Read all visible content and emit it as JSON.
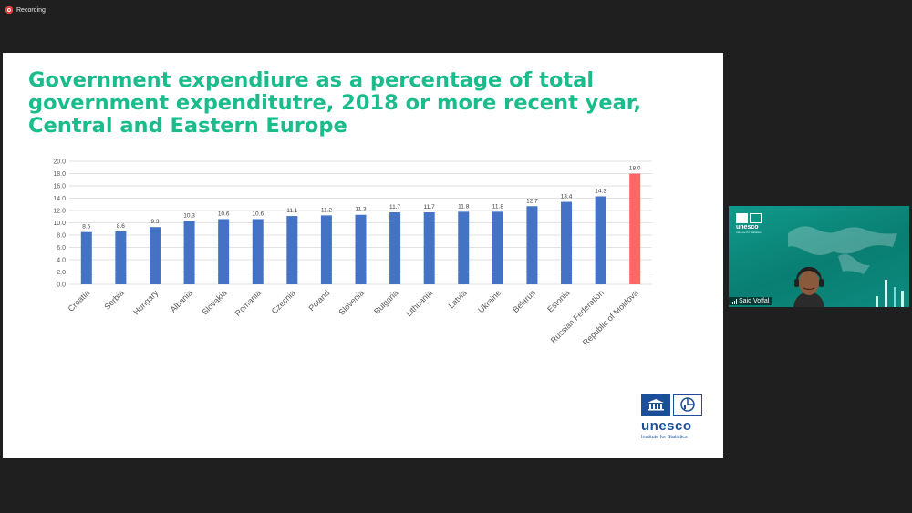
{
  "recording": {
    "label": "Recording"
  },
  "slide": {
    "title": "Government expendiure as a percentage of total government expenditutre, 2018 or more recent year, Central and Eastern Europe"
  },
  "chart_data": {
    "type": "bar",
    "categories": [
      "Croatia",
      "Serbia",
      "Hungary",
      "Albania",
      "Slovakia",
      "Romania",
      "Czechia",
      "Poland",
      "Slovenia",
      "Bulgaria",
      "Lithuania",
      "Latvia",
      "Ukraine",
      "Belarus",
      "Estonia",
      "Russian Federation",
      "Republic of Moldova"
    ],
    "values": [
      8.5,
      8.6,
      9.3,
      10.3,
      10.6,
      10.6,
      11.1,
      11.2,
      11.3,
      11.7,
      11.7,
      11.8,
      11.8,
      12.7,
      13.4,
      14.3,
      18.0
    ],
    "value_labels": [
      "8.5",
      "8.6",
      "9.3",
      "10.3",
      "10.6",
      "10.6",
      "11.1",
      "11.2",
      "11.3",
      "11.7",
      "11.7",
      "11.8",
      "11.8",
      "12.7",
      "13.4",
      "14.3",
      "18.0"
    ],
    "y_ticks": [
      "0.0",
      "2.0",
      "4.0",
      "6.0",
      "8.0",
      "10.0",
      "12.0",
      "14.0",
      "16.0",
      "18.0",
      "20.0"
    ],
    "ylim": [
      0,
      20
    ],
    "grid": true,
    "colors": {
      "bar": "#4472c4",
      "highlight": "#ff6666",
      "highlight_category": "Republic of Moldova"
    }
  },
  "logo": {
    "word": "unesco",
    "subtitle": "Institute for Statistics",
    "color": "#1b4f9c"
  },
  "video": {
    "participant_name": "Said Voffal",
    "logo_word": "unesco",
    "logo_subtitle": "Institute for Statistics",
    "background": "#0f9a8a"
  },
  "colors": {
    "title": "#1abc8c",
    "background": "#1f1f1f"
  }
}
